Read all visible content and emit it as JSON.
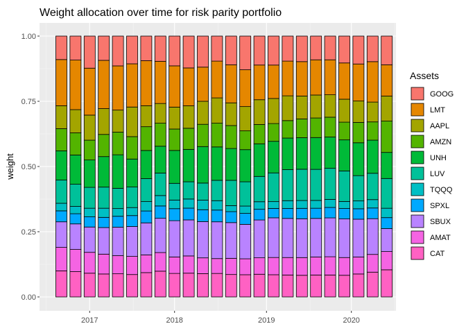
{
  "chart_data": {
    "type": "bar",
    "stacked": true,
    "title": "Weight allocation over time for risk parity portfolio",
    "xlabel": "",
    "ylabel": "weight",
    "ylim": [
      0,
      1
    ],
    "y_ticks": [
      "0.00",
      "0.25",
      "0.50",
      "0.75",
      "1.00"
    ],
    "x_ticks": [
      "2017",
      "2018",
      "2019",
      "2020"
    ],
    "x_tick_bar_positions": [
      2,
      8,
      14.5,
      20.5
    ],
    "legend_title": "Assets",
    "legend_position": "right",
    "grid": true,
    "series": [
      {
        "name": "CAT",
        "color": "#FF61C3",
        "values": [
          0.1,
          0.097,
          0.091,
          0.088,
          0.087,
          0.084,
          0.088,
          0.094,
          0.09,
          0.091,
          0.09,
          0.09,
          0.086,
          0.085,
          0.087,
          0.085,
          0.084,
          0.083,
          0.084,
          0.084,
          0.083,
          0.088,
          0.095,
          0.104
        ]
      },
      {
        "name": "AMAT",
        "color": "#F564E3",
        "values": [
          0.09,
          0.085,
          0.08,
          0.076,
          0.068,
          0.068,
          0.064,
          0.068,
          0.063,
          0.066,
          0.061,
          0.057,
          0.062,
          0.061,
          0.063,
          0.066,
          0.067,
          0.068,
          0.069,
          0.07,
          0.068,
          0.065,
          0.068,
          0.07
        ]
      },
      {
        "name": "SBUX",
        "color": "#B983FF",
        "values": [
          0.098,
          0.098,
          0.097,
          0.102,
          0.107,
          0.112,
          0.116,
          0.125,
          0.139,
          0.138,
          0.14,
          0.141,
          0.137,
          0.132,
          0.145,
          0.152,
          0.15,
          0.149,
          0.148,
          0.149,
          0.148,
          0.145,
          0.137,
          0.088
        ]
      },
      {
        "name": "SPXL",
        "color": "#00A9FF",
        "values": [
          0.042,
          0.039,
          0.039,
          0.039,
          0.041,
          0.041,
          0.043,
          0.045,
          0.046,
          0.045,
          0.046,
          0.045,
          0.042,
          0.042,
          0.041,
          0.036,
          0.038,
          0.04,
          0.039,
          0.04,
          0.04,
          0.04,
          0.041,
          0.042
        ]
      },
      {
        "name": "TQQQ",
        "color": "#00BFC4",
        "values": [
          0.029,
          0.028,
          0.033,
          0.035,
          0.029,
          0.03,
          0.034,
          0.038,
          0.033,
          0.035,
          0.037,
          0.036,
          0.023,
          0.028,
          0.029,
          0.026,
          0.03,
          0.03,
          0.03,
          0.031,
          0.027,
          0.03,
          0.032,
          0.036
        ]
      },
      {
        "name": "LUV",
        "color": "#00C19A",
        "values": [
          0.089,
          0.085,
          0.08,
          0.081,
          0.076,
          0.077,
          0.083,
          0.082,
          0.064,
          0.066,
          0.066,
          0.078,
          0.097,
          0.093,
          0.097,
          0.11,
          0.119,
          0.12,
          0.119,
          0.119,
          0.117,
          0.097,
          0.101,
          0.114
        ]
      },
      {
        "name": "UNH",
        "color": "#00BA38",
        "values": [
          0.112,
          0.112,
          0.105,
          0.117,
          0.126,
          0.105,
          0.102,
          0.098,
          0.126,
          0.124,
          0.141,
          0.128,
          0.122,
          0.123,
          0.125,
          0.121,
          0.121,
          0.121,
          0.122,
          0.12,
          0.119,
          0.126,
          0.127,
          0.1
        ]
      },
      {
        "name": "AMZN",
        "color": "#53B400",
        "values": [
          0.085,
          0.085,
          0.076,
          0.085,
          0.085,
          0.084,
          0.086,
          0.084,
          0.082,
          0.081,
          0.086,
          0.091,
          0.088,
          0.072,
          0.074,
          0.068,
          0.067,
          0.072,
          0.075,
          0.076,
          0.068,
          0.078,
          0.07,
          0.12
        ]
      },
      {
        "name": "AAPL",
        "color": "#A3A500",
        "values": [
          0.088,
          0.089,
          0.096,
          0.099,
          0.083,
          0.111,
          0.076,
          0.072,
          0.084,
          0.086,
          0.089,
          0.097,
          0.087,
          0.093,
          0.095,
          0.096,
          0.095,
          0.088,
          0.088,
          0.086,
          0.088,
          0.082,
          0.076,
          0.096
        ]
      },
      {
        "name": "LMT",
        "color": "#E58700",
        "values": [
          0.177,
          0.19,
          0.18,
          0.185,
          0.166,
          0.162,
          0.163,
          0.154,
          0.158,
          0.145,
          0.132,
          0.141,
          0.146,
          0.141,
          0.133,
          0.128,
          0.133,
          0.132,
          0.135,
          0.134,
          0.139,
          0.142,
          0.155,
          0.12
        ]
      },
      {
        "name": "GOOG",
        "color": "#F8766D",
        "values": [
          0.09,
          0.092,
          0.123,
          0.093,
          0.112,
          0.104,
          0.089,
          0.092,
          0.114,
          0.122,
          0.12,
          0.096,
          0.11,
          0.129,
          0.111,
          0.111,
          0.096,
          0.098,
          0.091,
          0.091,
          0.103,
          0.107,
          0.098,
          0.11
        ]
      }
    ]
  }
}
